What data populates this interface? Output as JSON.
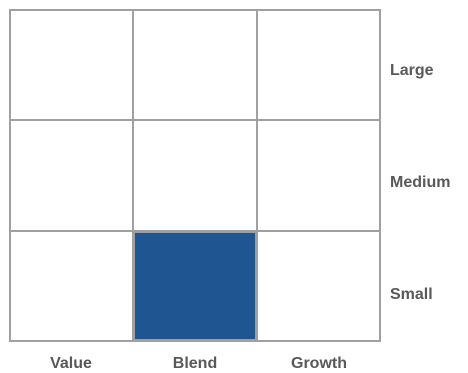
{
  "style_box": {
    "rows": [
      "Large",
      "Medium",
      "Small"
    ],
    "columns": [
      "Value",
      "Blend",
      "Growth"
    ],
    "selected": {
      "row": "Small",
      "column": "Blend"
    },
    "colors": {
      "selected_fill": "#1f5591",
      "grid_line": "#a0a0a0",
      "label_text": "#595959"
    }
  }
}
